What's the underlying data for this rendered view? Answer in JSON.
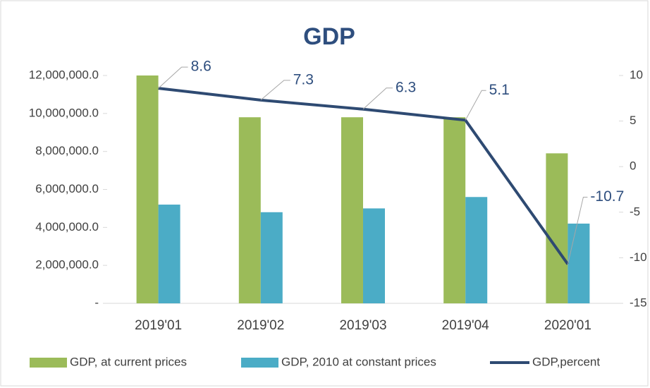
{
  "chart_data": {
    "type": "bar",
    "title": "GDP",
    "categories": [
      "2019'01",
      "2019'02",
      "2019'03",
      "2019'04",
      "2020'01"
    ],
    "series": [
      {
        "name": "GDP, at current prices",
        "color": "#9bbb59",
        "type": "bar",
        "values": [
          12000000,
          9800000,
          9800000,
          9800000,
          7900000
        ]
      },
      {
        "name": "GDP, 2010 at constant prices",
        "color": "#4bacc6",
        "type": "bar",
        "values": [
          5200000,
          4800000,
          5000000,
          5600000,
          4200000
        ]
      },
      {
        "name": "GDP,percent",
        "color": "#2e4a72",
        "type": "line",
        "axis": "y2",
        "values": [
          8.6,
          7.3,
          6.3,
          5.1,
          -10.7
        ]
      }
    ],
    "ylim": [
      0,
      12000000
    ],
    "yticks": [
      {
        "value": 0,
        "label": "-"
      },
      {
        "value": 2000000,
        "label": "2,000,000.0"
      },
      {
        "value": 4000000,
        "label": "4,000,000.0"
      },
      {
        "value": 6000000,
        "label": "6,000,000.0"
      },
      {
        "value": 8000000,
        "label": "8,000,000.0"
      },
      {
        "value": 10000000,
        "label": "10,000,000.0"
      },
      {
        "value": 12000000,
        "label": "12,000,000.0"
      }
    ],
    "y2lim": [
      -15,
      10
    ],
    "y2ticks": [
      -15,
      -10,
      -5,
      0,
      5,
      10
    ],
    "grid": false,
    "legend": "bottom"
  }
}
